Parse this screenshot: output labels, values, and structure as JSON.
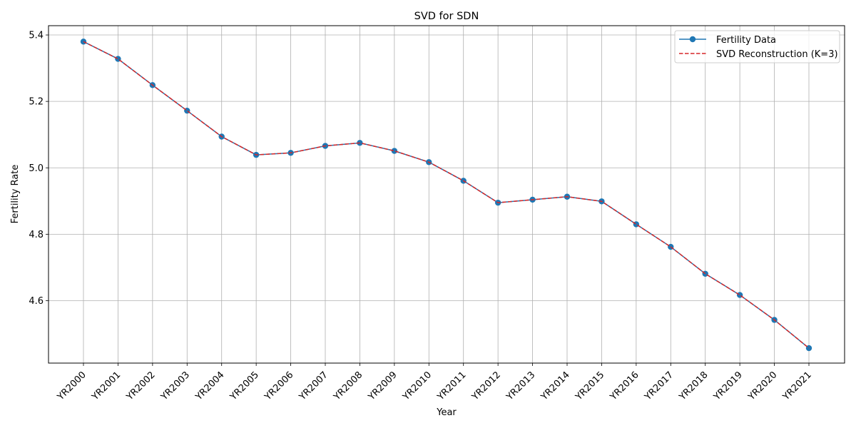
{
  "chart_data": {
    "type": "line",
    "title": "SVD for SDN",
    "xlabel": "Year",
    "ylabel": "Fertility Rate",
    "categories": [
      "YR2000",
      "YR2001",
      "YR2002",
      "YR2003",
      "YR2004",
      "YR2005",
      "YR2006",
      "YR2007",
      "YR2008",
      "YR2009",
      "YR2010",
      "YR2011",
      "YR2012",
      "YR2013",
      "YR2014",
      "YR2015",
      "YR2016",
      "YR2017",
      "YR2018",
      "YR2019",
      "YR2020",
      "YR2021"
    ],
    "ylim": [
      4.412,
      5.428
    ],
    "yticks": [
      4.6,
      4.8,
      5.0,
      5.2,
      5.4
    ],
    "ytick_labels": [
      "4.6",
      "4.8",
      "5.0",
      "5.2",
      "5.4"
    ],
    "grid": true,
    "legend_position": "top-right",
    "series": [
      {
        "name": "Fertility Data",
        "color": "#1f77b4",
        "style": "solid-with-circle-markers",
        "values": [
          5.38,
          5.328,
          5.249,
          5.172,
          5.094,
          5.039,
          5.045,
          5.066,
          5.075,
          5.051,
          5.017,
          4.961,
          4.895,
          4.904,
          4.913,
          4.899,
          4.83,
          4.762,
          4.681,
          4.617,
          4.542,
          4.457
        ]
      },
      {
        "name": "SVD Reconstruction (K=3)",
        "color": "#d62728",
        "style": "dashed",
        "values": [
          5.38,
          5.328,
          5.249,
          5.172,
          5.094,
          5.039,
          5.045,
          5.066,
          5.075,
          5.051,
          5.017,
          4.961,
          4.895,
          4.904,
          4.913,
          4.899,
          4.83,
          4.762,
          4.681,
          4.617,
          4.542,
          4.457
        ]
      }
    ]
  }
}
